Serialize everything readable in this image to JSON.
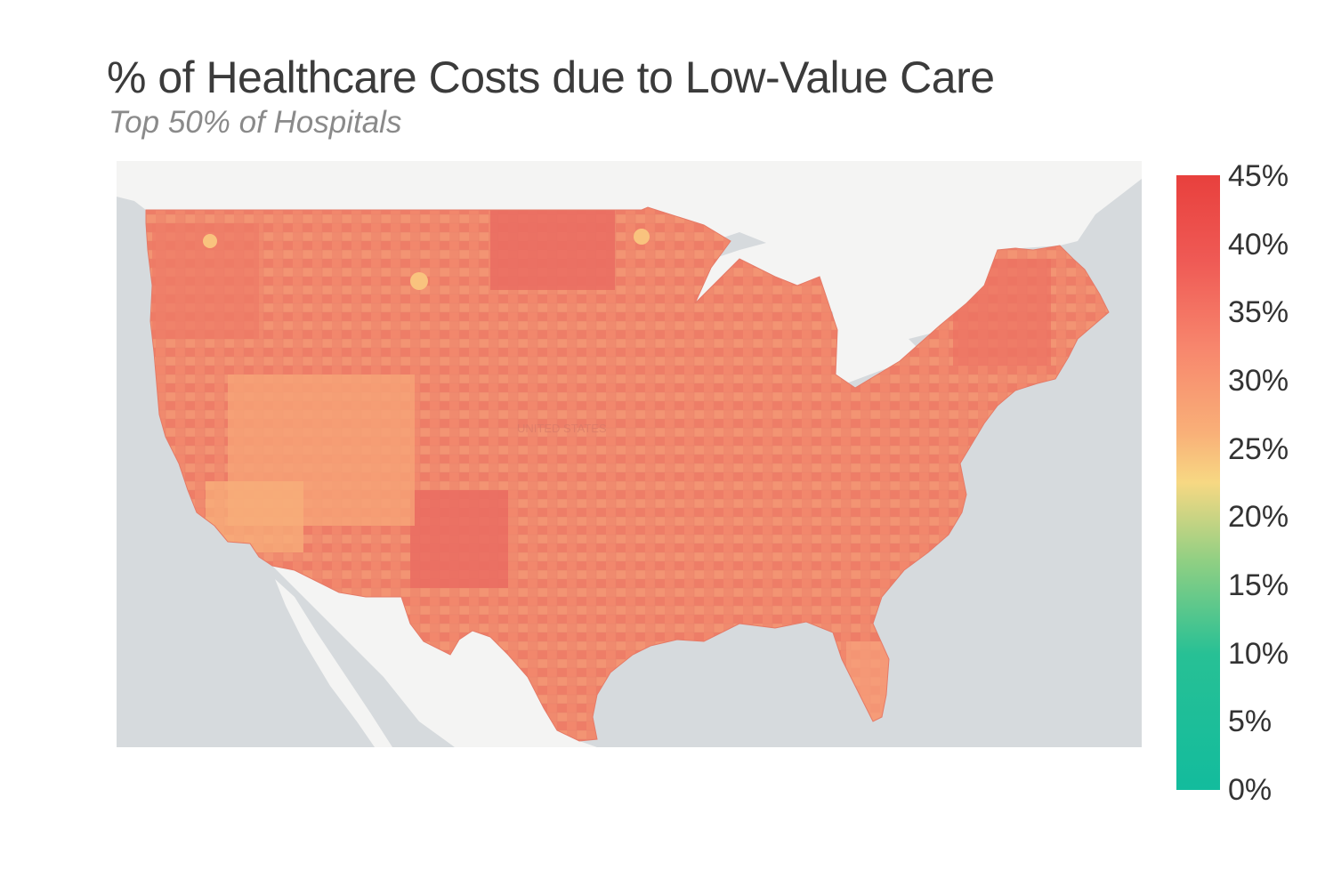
{
  "title": "% of Healthcare Costs due to Low-Value Care",
  "subtitle": "Top 50% of Hospitals",
  "map": {
    "region": "Contiguous United States",
    "fill_metric": "% of healthcare costs due to low-value care, by county",
    "basemap_label": "UNITED STATES",
    "colors": {
      "water": "#d6dadd",
      "land": "#f5f5f4",
      "dominant_fill": "#f2876c",
      "high_fill": "#e9655f",
      "low_fill": "#f8b47c",
      "county_border": "#e9826a"
    }
  },
  "legend": {
    "ticks": [
      "45%",
      "40%",
      "35%",
      "30%",
      "25%",
      "20%",
      "15%",
      "10%",
      "5%",
      "0%"
    ],
    "colors": [
      "#e8403d",
      "#ef5a55",
      "#f7866d",
      "#f9b078",
      "#f7d883",
      "#8ecf83",
      "#27c095",
      "#13bc9d"
    ]
  }
}
